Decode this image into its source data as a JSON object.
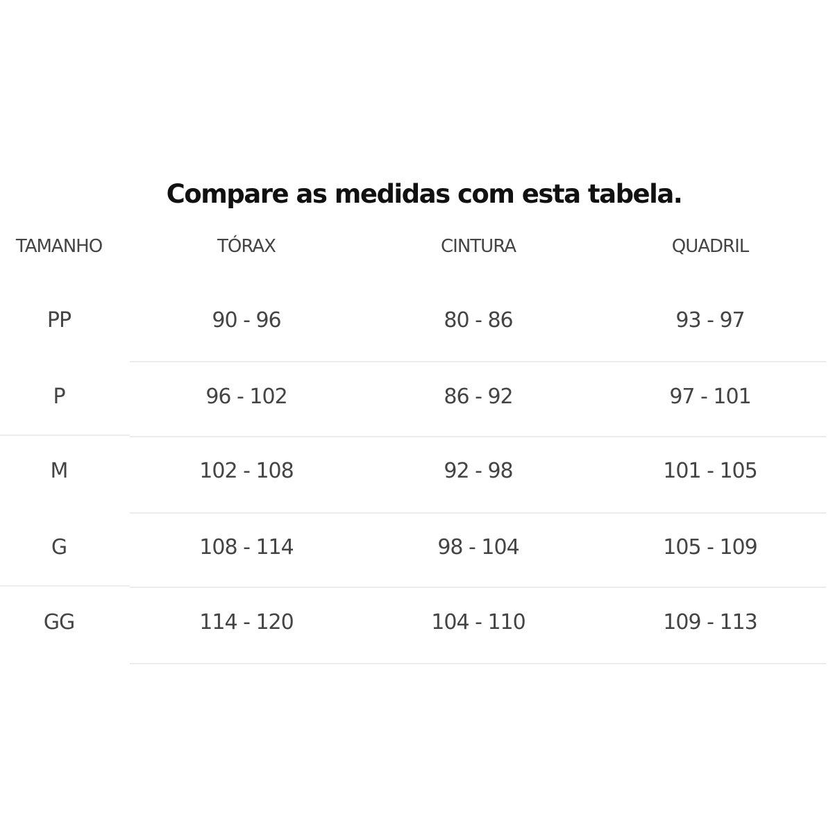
{
  "title": "Compare as medidas com esta tabela.",
  "headers": [
    "TAMANHO",
    "TÓRAX",
    "CINTURA",
    "QUADRIL"
  ],
  "rows": [
    [
      "PP",
      "90 - 96",
      "80 - 86",
      "93 - 97"
    ],
    [
      "P",
      "96 - 102",
      "86 - 92",
      "97 - 101"
    ],
    [
      "M",
      "102 - 108",
      "92 - 98",
      "101 - 105"
    ],
    [
      "G",
      "108 - 114",
      "98 - 104",
      "105 - 109"
    ],
    [
      "GG",
      "114 - 120",
      "104 - 110",
      "109 - 113"
    ]
  ],
  "colors": {
    "text": "#444444",
    "title": "#111111",
    "divider": "#ececec"
  }
}
